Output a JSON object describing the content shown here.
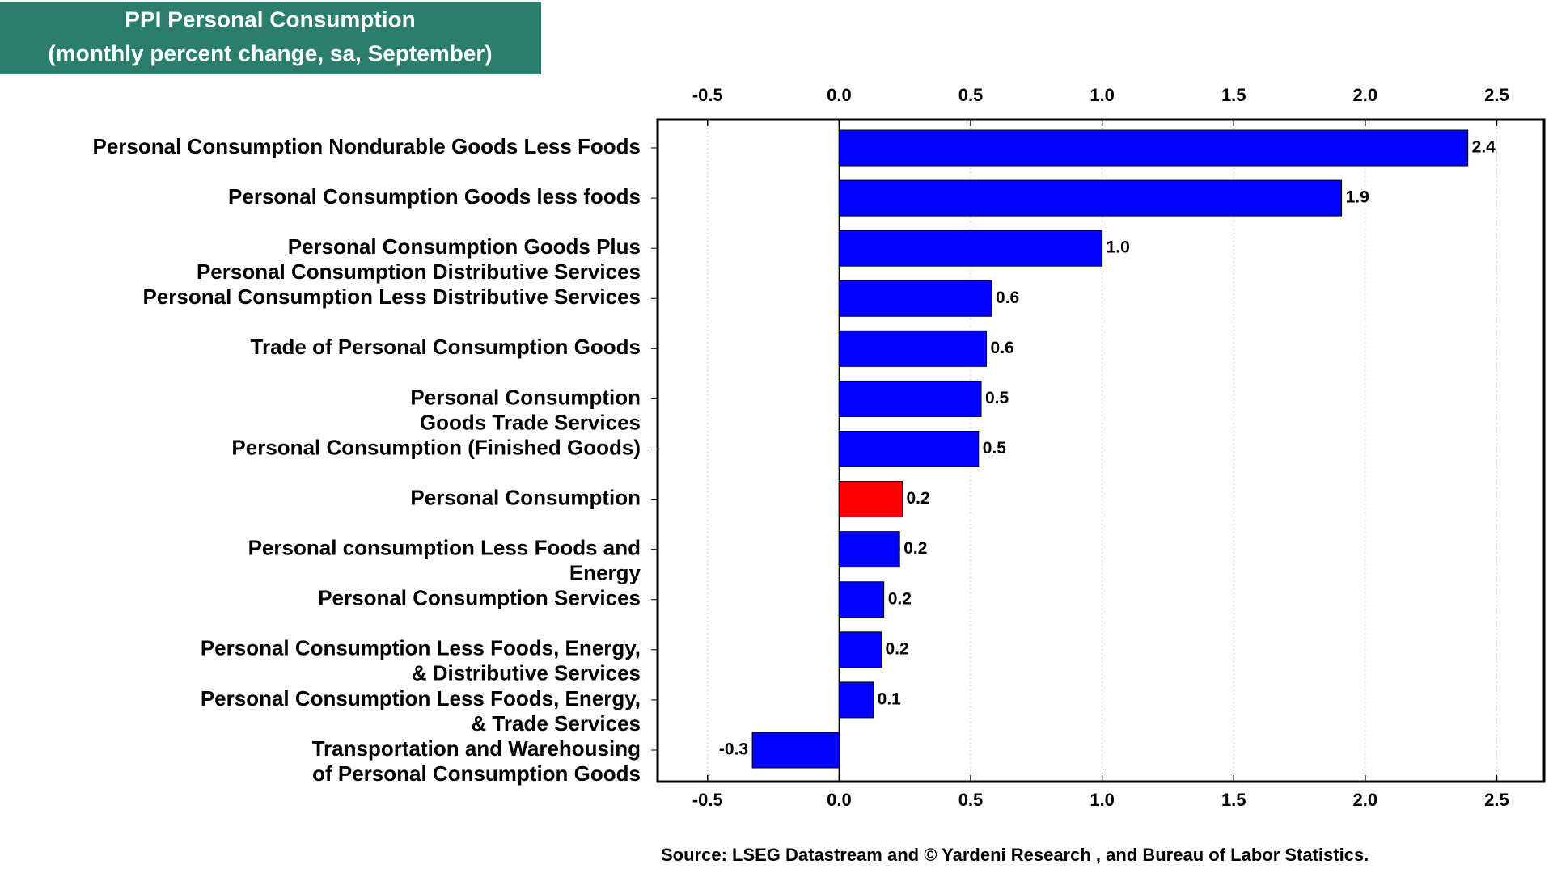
{
  "chart_data": {
    "type": "bar",
    "orientation": "horizontal",
    "title": [
      "PPI Personal Consumption",
      "(monthly percent change, sa, September)"
    ],
    "source": "Source: LSEG Datastream and © Yardeni Research , and Bureau of Labor Statistics.",
    "categories": [
      [
        "Personal Consumption Nondurable Goods Less Foods"
      ],
      [
        "Personal Consumption Goods less foods"
      ],
      [
        "Personal Consumption Goods Plus",
        "Personal Consumption Distributive Services"
      ],
      [
        "Personal Consumption Less Distributive Services"
      ],
      [
        "Trade of Personal Consumption Goods"
      ],
      [
        "Personal Consumption",
        "Goods Trade Services"
      ],
      [
        "Personal Consumption (Finished Goods)"
      ],
      [
        "Personal Consumption"
      ],
      [
        "Personal consumption Less Foods and",
        "Energy"
      ],
      [
        "Personal Consumption Services"
      ],
      [
        "Personal Consumption Less Foods, Energy,",
        "& Distributive Services"
      ],
      [
        "Personal Consumption Less Foods, Energy,",
        "& Trade Services"
      ],
      [
        "Transportation and Warehousing",
        "of Personal Consumption Goods"
      ]
    ],
    "values": [
      2.39,
      1.91,
      1.0,
      0.58,
      0.56,
      0.54,
      0.53,
      0.24,
      0.23,
      0.17,
      0.16,
      0.13,
      -0.33
    ],
    "value_labels": [
      "2.4",
      "1.9",
      "1.0",
      "0.6",
      "0.6",
      "0.5",
      "0.5",
      "0.2",
      "0.2",
      "0.2",
      "0.2",
      "0.1",
      "-0.3"
    ],
    "colors": [
      "#0000ff",
      "#0000ff",
      "#0000ff",
      "#0000ff",
      "#0000ff",
      "#0000ff",
      "#0000ff",
      "#ff0000",
      "#0000ff",
      "#0000ff",
      "#0000ff",
      "#0000ff",
      "#0000ff"
    ],
    "xlim": [
      -0.69,
      2.68
    ],
    "xticks": [
      -0.5,
      {
        "value": 0,
        "label": "0.0"
      },
      0.5,
      {
        "value": 1,
        "label": "1.0"
      },
      1.5,
      {
        "value": 2,
        "label": "2.0"
      },
      2.5
    ],
    "grid": true
  }
}
